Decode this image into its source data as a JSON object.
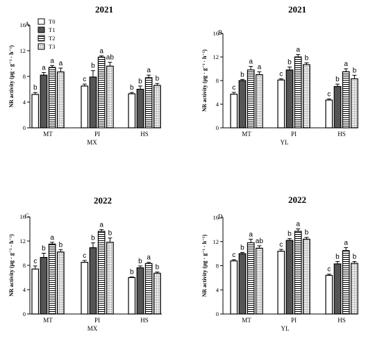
{
  "patterns": {
    "T0": "white",
    "T1": "solid-dark-gray",
    "T2": "horizontal-stripes",
    "T3": "dots"
  },
  "colors": {
    "bar_fill_dark": "#555555",
    "stroke": "#000000",
    "background": "#ffffff"
  },
  "chart_data": [
    {
      "type": "bar",
      "panel_letter": "A",
      "title": "2021",
      "ylabel": "NR activity (μg · g⁻¹ · h⁻¹)",
      "xlabel": "MX",
      "ylim": [
        0,
        16
      ],
      "yticks": [
        "0",
        "4",
        "8",
        "12",
        "16"
      ],
      "categories": [
        "MT",
        "PI",
        "HS"
      ],
      "legend": {
        "entries": [
          "T0",
          "T1",
          "T2",
          "T3"
        ],
        "position": "top-left"
      },
      "series": [
        {
          "name": "T0",
          "values": [
            5.2,
            6.5,
            5.3
          ],
          "errors": [
            0.3,
            0.3,
            0.2
          ],
          "letters": [
            "b",
            "c",
            "b"
          ]
        },
        {
          "name": "T1",
          "values": [
            8.2,
            7.9,
            6.0
          ],
          "errors": [
            0.4,
            1.0,
            0.5
          ],
          "letters": [
            "a",
            "b",
            "b"
          ]
        },
        {
          "name": "T2",
          "values": [
            9.4,
            11.0,
            7.8
          ],
          "errors": [
            0.3,
            0.2,
            0.4
          ],
          "letters": [
            "a",
            "a",
            "a"
          ]
        },
        {
          "name": "T3",
          "values": [
            8.7,
            9.6,
            6.6
          ],
          "errors": [
            0.6,
            0.6,
            0.3
          ],
          "letters": [
            "a",
            "ab",
            "b"
          ]
        }
      ]
    },
    {
      "type": "bar",
      "panel_letter": "B",
      "title": "2021",
      "ylabel": "NR activity (μg · g⁻¹ · h⁻¹)",
      "xlabel": "YL",
      "ylim": [
        0,
        16
      ],
      "yticks": [
        "0",
        "4",
        "8",
        "12",
        "16"
      ],
      "categories": [
        "MT",
        "PI",
        "HS"
      ],
      "series": [
        {
          "name": "T0",
          "values": [
            5.7,
            8.1,
            4.7
          ],
          "errors": [
            0.3,
            0.2,
            0.2
          ],
          "letters": [
            "c",
            "c",
            "c"
          ]
        },
        {
          "name": "T1",
          "values": [
            8.0,
            9.8,
            7.0
          ],
          "errors": [
            0.2,
            0.5,
            0.4
          ],
          "letters": [
            "b",
            "b",
            "b"
          ]
        },
        {
          "name": "T2",
          "values": [
            9.8,
            12.0,
            9.5
          ],
          "errors": [
            0.6,
            0.4,
            0.5
          ],
          "letters": [
            "a",
            "a",
            "a"
          ]
        },
        {
          "name": "T3",
          "values": [
            9.0,
            10.7,
            8.3
          ],
          "errors": [
            0.5,
            0.3,
            0.6
          ],
          "letters": [
            "a",
            "b",
            "b"
          ]
        }
      ]
    },
    {
      "type": "bar",
      "panel_letter": "C",
      "title": "2022",
      "ylabel": "NR activity (μg · g⁻¹ · h⁻¹)",
      "xlabel": "MX",
      "ylim": [
        0,
        16
      ],
      "yticks": [
        "0",
        "4",
        "8",
        "12",
        "16"
      ],
      "categories": [
        "MT",
        "PI",
        "HS"
      ],
      "series": [
        {
          "name": "T0",
          "values": [
            7.4,
            8.5,
            6.0
          ],
          "errors": [
            0.5,
            0.3,
            0.1
          ],
          "letters": [
            "c",
            "c",
            "b"
          ]
        },
        {
          "name": "T1",
          "values": [
            9.3,
            10.9,
            7.6
          ],
          "errors": [
            0.7,
            0.8,
            0.3
          ],
          "letters": [
            "b",
            "b",
            "b"
          ]
        },
        {
          "name": "T2",
          "values": [
            11.5,
            13.6,
            8.3
          ],
          "errors": [
            0.3,
            0.3,
            0.2
          ],
          "letters": [
            "a",
            "a",
            "a"
          ]
        },
        {
          "name": "T3",
          "values": [
            10.2,
            11.8,
            6.7
          ],
          "errors": [
            0.4,
            0.7,
            0.2
          ],
          "letters": [
            "b",
            "b",
            "b"
          ]
        }
      ]
    },
    {
      "type": "bar",
      "panel_letter": "D",
      "title": "2022",
      "ylabel": "NR activity (μg · g⁻¹ · h⁻¹)",
      "xlabel": "YL",
      "ylim": [
        0,
        16
      ],
      "yticks": [
        "0",
        "4",
        "8",
        "12",
        "16"
      ],
      "categories": [
        "MT",
        "PI",
        "HS"
      ],
      "series": [
        {
          "name": "T0",
          "values": [
            8.8,
            10.4,
            6.4
          ],
          "errors": [
            0.2,
            0.3,
            0.2
          ],
          "letters": [
            "c",
            "c",
            "c"
          ]
        },
        {
          "name": "T1",
          "values": [
            10.0,
            12.2,
            8.3
          ],
          "errors": [
            0.2,
            0.3,
            0.4
          ],
          "letters": [
            "b",
            "b",
            "b"
          ]
        },
        {
          "name": "T2",
          "values": [
            11.8,
            13.7,
            10.5
          ],
          "errors": [
            0.6,
            0.4,
            0.5
          ],
          "letters": [
            "a",
            "a",
            "a"
          ]
        },
        {
          "name": "T3",
          "values": [
            10.9,
            12.4,
            8.4
          ],
          "errors": [
            0.4,
            0.3,
            0.3
          ],
          "letters": [
            "ab",
            "b",
            "b"
          ]
        }
      ]
    }
  ]
}
